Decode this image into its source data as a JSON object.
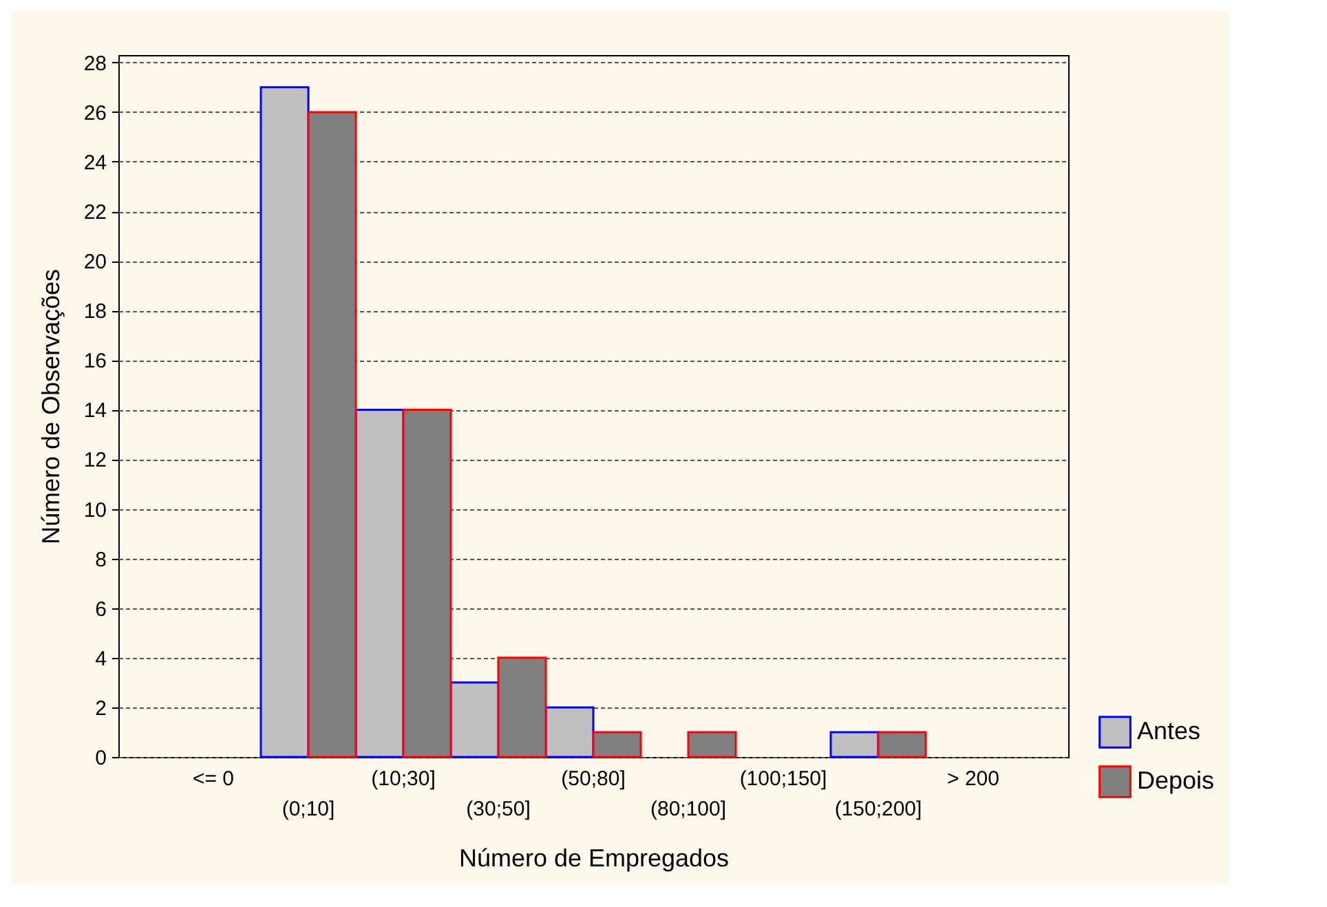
{
  "chart_data": {
    "type": "bar",
    "xlabel": "Número de Empregados",
    "ylabel": "Número de Observações",
    "categories": [
      "<= 0",
      "(0;10]",
      "(10;30]",
      "(30;50]",
      "(50;80]",
      "(80;100]",
      "(100;150]",
      "(150;200]",
      "> 200"
    ],
    "series": [
      {
        "name": "Antes",
        "color": "#c0c0c0",
        "values": [
          0,
          27,
          14,
          3,
          2,
          0,
          0,
          1,
          0
        ]
      },
      {
        "name": "Depois",
        "color": "#808080",
        "values": [
          0,
          26,
          14,
          4,
          1,
          1,
          0,
          1,
          0
        ]
      }
    ],
    "ylim": [
      0,
      28.3
    ],
    "yticks": [
      0,
      2,
      4,
      6,
      8,
      10,
      12,
      14,
      16,
      18,
      20,
      22,
      24,
      26,
      28
    ],
    "grid": "y",
    "legend": "right"
  }
}
